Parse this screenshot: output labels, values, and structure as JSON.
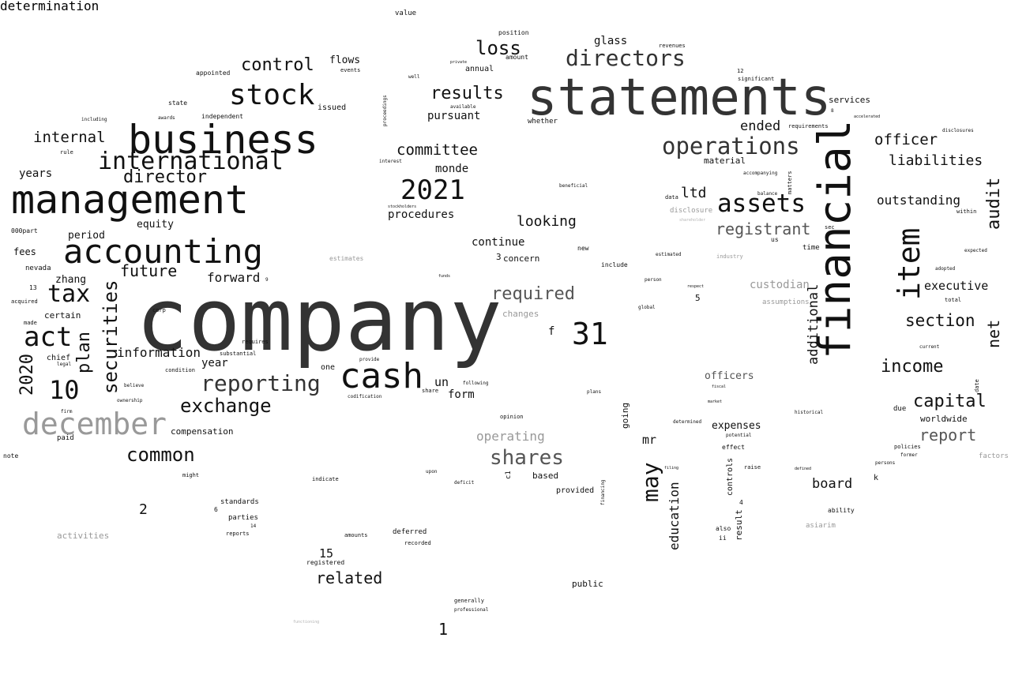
{
  "colors": {
    "background": "#ffffff",
    "black": "#111111",
    "dark": "#333333",
    "mid": "#555555",
    "gray": "#999999",
    "light": "#b3b3b3"
  },
  "words": [
    {
      "text": "company",
      "shade": "dark"
    },
    {
      "text": "statements",
      "shade": "dark"
    },
    {
      "text": "financial",
      "shade": "black"
    },
    {
      "text": "management",
      "shade": "black"
    },
    {
      "text": "business",
      "shade": "black"
    },
    {
      "text": "accounting",
      "shade": "black"
    },
    {
      "text": "stock",
      "shade": "black"
    },
    {
      "text": "cash",
      "shade": "black"
    },
    {
      "text": "december",
      "shade": "gray"
    },
    {
      "text": "international",
      "shade": "black"
    },
    {
      "text": "directors",
      "shade": "dark"
    },
    {
      "text": "operations",
      "shade": "dark"
    },
    {
      "text": "assets",
      "shade": "black"
    },
    {
      "text": "2021",
      "shade": "black"
    },
    {
      "text": "31",
      "shade": "black"
    },
    {
      "text": "item",
      "shade": "black"
    },
    {
      "text": "reporting",
      "shade": "dark"
    },
    {
      "text": "shares",
      "shade": "mid"
    },
    {
      "text": "act",
      "shade": "black"
    },
    {
      "text": "tax",
      "shade": "black"
    },
    {
      "text": "10",
      "shade": "black"
    },
    {
      "text": "securities",
      "shade": "black"
    },
    {
      "text": "director",
      "shade": "black"
    },
    {
      "text": "exchange",
      "shade": "black"
    },
    {
      "text": "common",
      "shade": "black"
    },
    {
      "text": "control",
      "shade": "black"
    },
    {
      "text": "loss",
      "shade": "black"
    },
    {
      "text": "results",
      "shade": "black"
    },
    {
      "text": "may",
      "shade": "black"
    },
    {
      "text": "registrant",
      "shade": "mid"
    },
    {
      "text": "audit",
      "shade": "black"
    },
    {
      "text": "internal",
      "shade": "black"
    },
    {
      "text": "future",
      "shade": "black"
    },
    {
      "text": "plan",
      "shade": "black"
    },
    {
      "text": "required",
      "shade": "mid"
    },
    {
      "text": "committee",
      "shade": "black"
    },
    {
      "text": "income",
      "shade": "black"
    },
    {
      "text": "section",
      "shade": "black"
    },
    {
      "text": "capital",
      "shade": "black"
    },
    {
      "text": "report",
      "shade": "mid"
    },
    {
      "text": "liabilities",
      "shade": "black"
    },
    {
      "text": "officer",
      "shade": "black"
    },
    {
      "text": "outstanding",
      "shade": "black"
    },
    {
      "text": "net",
      "shade": "black"
    },
    {
      "text": "additional",
      "shade": "black"
    },
    {
      "text": "2020",
      "shade": "black"
    },
    {
      "text": "information",
      "shade": "black"
    },
    {
      "text": "related",
      "shade": "black"
    },
    {
      "text": "looking",
      "shade": "black"
    },
    {
      "text": "forward",
      "shade": "black"
    },
    {
      "text": "ended",
      "shade": "black"
    },
    {
      "text": "executive",
      "shade": "black"
    },
    {
      "text": "board",
      "shade": "black"
    },
    {
      "text": "ltd",
      "shade": "black"
    },
    {
      "text": "education",
      "shade": "black"
    },
    {
      "text": "custodian",
      "shade": "gray"
    },
    {
      "text": "operating",
      "shade": "gray"
    },
    {
      "text": "un",
      "shade": "black"
    },
    {
      "text": "mr",
      "shade": "black"
    },
    {
      "text": "year",
      "shade": "black"
    },
    {
      "text": "form",
      "shade": "black"
    },
    {
      "text": "pursuant",
      "shade": "black"
    },
    {
      "text": "procedures",
      "shade": "black"
    },
    {
      "text": "monde",
      "shade": "black"
    },
    {
      "text": "continue",
      "shade": "black"
    },
    {
      "text": "flows",
      "shade": "black"
    },
    {
      "text": "years",
      "shade": "black"
    },
    {
      "text": "equity",
      "shade": "black"
    },
    {
      "text": "period",
      "shade": "black"
    },
    {
      "text": "zhang",
      "shade": "black"
    },
    {
      "text": "fees",
      "shade": "black"
    },
    {
      "text": "2",
      "shade": "black"
    },
    {
      "text": "1",
      "shade": "black"
    },
    {
      "text": "15",
      "shade": "black"
    },
    {
      "text": "f",
      "shade": "black"
    },
    {
      "text": "glass",
      "shade": "black"
    },
    {
      "text": "worldwide",
      "shade": "black"
    },
    {
      "text": "officers",
      "shade": "mid"
    },
    {
      "text": "expenses",
      "shade": "black"
    },
    {
      "text": "compensation",
      "shade": "black"
    },
    {
      "text": "services",
      "shade": "black"
    },
    {
      "text": "changes",
      "shade": "gray"
    },
    {
      "text": "certain",
      "shade": "black"
    },
    {
      "text": "chief",
      "shade": "black"
    },
    {
      "text": "nevada",
      "shade": "black"
    },
    {
      "text": "annual",
      "shade": "black"
    },
    {
      "text": "issued",
      "shade": "black"
    },
    {
      "text": "concern",
      "shade": "black"
    },
    {
      "text": "material",
      "shade": "black"
    },
    {
      "text": "going",
      "shade": "black"
    },
    {
      "text": "controls",
      "shade": "black"
    },
    {
      "text": "result",
      "shade": "black"
    },
    {
      "text": "public",
      "shade": "black"
    },
    {
      "text": "deferred",
      "shade": "black"
    },
    {
      "text": "based",
      "shade": "black"
    },
    {
      "text": "provided",
      "shade": "black"
    },
    {
      "text": "standards",
      "shade": "black"
    },
    {
      "text": "parties",
      "shade": "black"
    },
    {
      "text": "activities",
      "shade": "gray"
    },
    {
      "text": "disclosure",
      "shade": "gray"
    },
    {
      "text": "assumptions",
      "shade": "gray"
    },
    {
      "text": "estimates",
      "shade": "gray"
    },
    {
      "text": "factors",
      "shade": "gray"
    },
    {
      "text": "asiarim",
      "shade": "gray"
    },
    {
      "text": "industry",
      "shade": "gray"
    },
    {
      "text": "000part",
      "shade": "black"
    },
    {
      "text": "value",
      "shade": "black"
    },
    {
      "text": "position",
      "shade": "black"
    },
    {
      "text": "amount",
      "shade": "black"
    },
    {
      "text": "revenues",
      "shade": "black"
    },
    {
      "text": "appointed",
      "shade": "black"
    },
    {
      "text": "events",
      "shade": "black"
    },
    {
      "text": "independent",
      "shade": "black"
    },
    {
      "text": "state",
      "shade": "black"
    },
    {
      "text": "awards",
      "shade": "black"
    },
    {
      "text": "including",
      "shade": "black"
    },
    {
      "text": "rule",
      "shade": "black"
    },
    {
      "text": "whether",
      "shade": "black"
    },
    {
      "text": "time",
      "shade": "black"
    },
    {
      "text": "us",
      "shade": "black"
    },
    {
      "text": "sec",
      "shade": "black"
    },
    {
      "text": "new",
      "shade": "black"
    },
    {
      "text": "include",
      "shade": "black"
    },
    {
      "text": "3",
      "shade": "black"
    },
    {
      "text": "5",
      "shade": "black"
    },
    {
      "text": "6",
      "shade": "black"
    },
    {
      "text": "4",
      "shade": "black"
    },
    {
      "text": "one",
      "shade": "black"
    },
    {
      "text": "paid",
      "shade": "black"
    },
    {
      "text": "note",
      "shade": "black"
    },
    {
      "text": "made",
      "shade": "black"
    },
    {
      "text": "acquired",
      "shade": "black"
    },
    {
      "text": "13",
      "shade": "black"
    },
    {
      "text": "legal",
      "shade": "black"
    },
    {
      "text": "corp",
      "shade": "black"
    },
    {
      "text": "requires",
      "shade": "black"
    },
    {
      "text": "substantial",
      "shade": "black"
    },
    {
      "text": "condition",
      "shade": "black"
    },
    {
      "text": "believe",
      "shade": "black"
    },
    {
      "text": "ownership",
      "shade": "black"
    },
    {
      "text": "firm",
      "shade": "black"
    },
    {
      "text": "might",
      "shade": "black"
    },
    {
      "text": "reports",
      "shade": "black"
    },
    {
      "text": "amounts",
      "shade": "black"
    },
    {
      "text": "registered",
      "shade": "black"
    },
    {
      "text": "recorded",
      "shade": "black"
    },
    {
      "text": "indicate",
      "shade": "black"
    },
    {
      "text": "generally",
      "shade": "black"
    },
    {
      "text": "professional",
      "shade": "black"
    },
    {
      "text": "deficit",
      "shade": "black"
    },
    {
      "text": "upon",
      "shade": "black"
    },
    {
      "text": "opinion",
      "shade": "black"
    },
    {
      "text": "share",
      "shade": "black"
    },
    {
      "text": "provide",
      "shade": "black"
    },
    {
      "text": "following",
      "shade": "black"
    },
    {
      "text": "codification",
      "shade": "black"
    },
    {
      "text": "c1",
      "shade": "black"
    },
    {
      "text": "also",
      "shade": "black"
    },
    {
      "text": "ii",
      "shade": "black"
    },
    {
      "text": "effect",
      "shade": "black"
    },
    {
      "text": "raise",
      "shade": "black"
    },
    {
      "text": "ability",
      "shade": "black"
    },
    {
      "text": "k",
      "shade": "black"
    },
    {
      "text": "due",
      "shade": "black"
    },
    {
      "text": "policies",
      "shade": "black"
    },
    {
      "text": "former",
      "shade": "black"
    },
    {
      "text": "persons",
      "shade": "black"
    },
    {
      "text": "total",
      "shade": "black"
    },
    {
      "text": "adopted",
      "shade": "black"
    },
    {
      "text": "current",
      "shade": "black"
    },
    {
      "text": "expected",
      "shade": "black"
    },
    {
      "text": "within",
      "shade": "black"
    },
    {
      "text": "date",
      "shade": "black"
    },
    {
      "text": "requirements",
      "shade": "black"
    },
    {
      "text": "significant",
      "shade": "black"
    },
    {
      "text": "accelerated",
      "shade": "black"
    },
    {
      "text": "disclosures",
      "shade": "black"
    },
    {
      "text": "matters",
      "shade": "black"
    },
    {
      "text": "balance",
      "shade": "black"
    },
    {
      "text": "accompanying",
      "shade": "black"
    },
    {
      "text": "data",
      "shade": "black"
    },
    {
      "text": "beneficial",
      "shade": "black"
    },
    {
      "text": "interest",
      "shade": "black"
    },
    {
      "text": "stockholders",
      "shade": "black"
    },
    {
      "text": "well",
      "shade": "black"
    },
    {
      "text": "proceedings",
      "shade": "black"
    },
    {
      "text": "available",
      "shade": "black"
    },
    {
      "text": "private",
      "shade": "black"
    },
    {
      "text": "estimated",
      "shade": "black"
    },
    {
      "text": "person",
      "shade": "black"
    },
    {
      "text": "respect",
      "shade": "black"
    },
    {
      "text": "global",
      "shade": "black"
    },
    {
      "text": "plans",
      "shade": "black"
    },
    {
      "text": "market",
      "shade": "black"
    },
    {
      "text": "potential",
      "shade": "black"
    },
    {
      "text": "fiscal",
      "shade": "black"
    },
    {
      "text": "determined",
      "shade": "black"
    },
    {
      "text": "filing",
      "shade": "black"
    },
    {
      "text": "historical",
      "shade": "black"
    },
    {
      "text": "defined",
      "shade": "black"
    },
    {
      "text": "funds",
      "shade": "black"
    },
    {
      "text": "14",
      "shade": "black"
    },
    {
      "text": "12",
      "shade": "black"
    },
    {
      "text": "8",
      "shade": "black"
    },
    {
      "text": "9",
      "shade": "black"
    },
    {
      "text": "financing",
      "shade": "black"
    },
    {
      "text": "functioning",
      "shade": "light"
    },
    {
      "text": "shareholder",
      "shade": "light"
    },
    {
      "text": "determination",
      "shade": "light"
    }
  ]
}
